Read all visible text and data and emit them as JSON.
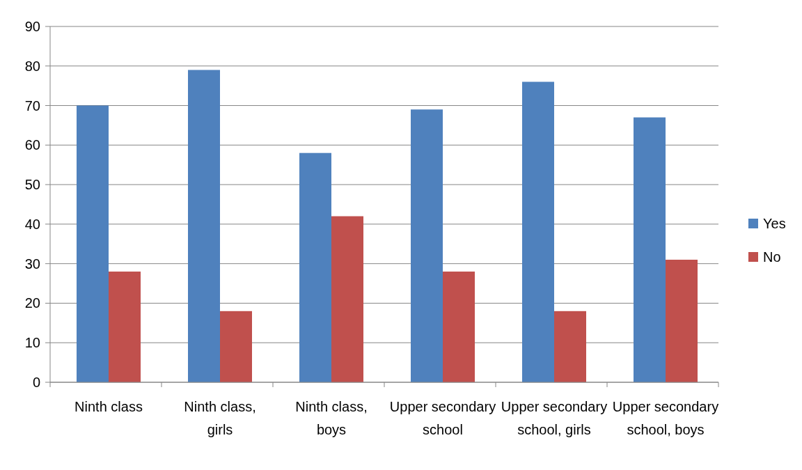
{
  "chart_data": {
    "type": "bar",
    "categories": [
      "Ninth class",
      "Ninth class, girls",
      "Ninth class, boys",
      "Upper secondary school",
      "Upper secondary school, girls",
      "Upper secondary school, boys"
    ],
    "series": [
      {
        "name": "Yes",
        "color": "#4f81bd",
        "values": [
          70,
          79,
          58,
          69,
          76,
          67
        ]
      },
      {
        "name": "No",
        "color": "#c0504d",
        "values": [
          28,
          18,
          42,
          28,
          18,
          31
        ]
      }
    ],
    "ylim": [
      0,
      90
    ],
    "yticks": [
      0,
      10,
      20,
      30,
      40,
      50,
      60,
      70,
      80,
      90
    ],
    "grid": "y",
    "legend": "right"
  }
}
